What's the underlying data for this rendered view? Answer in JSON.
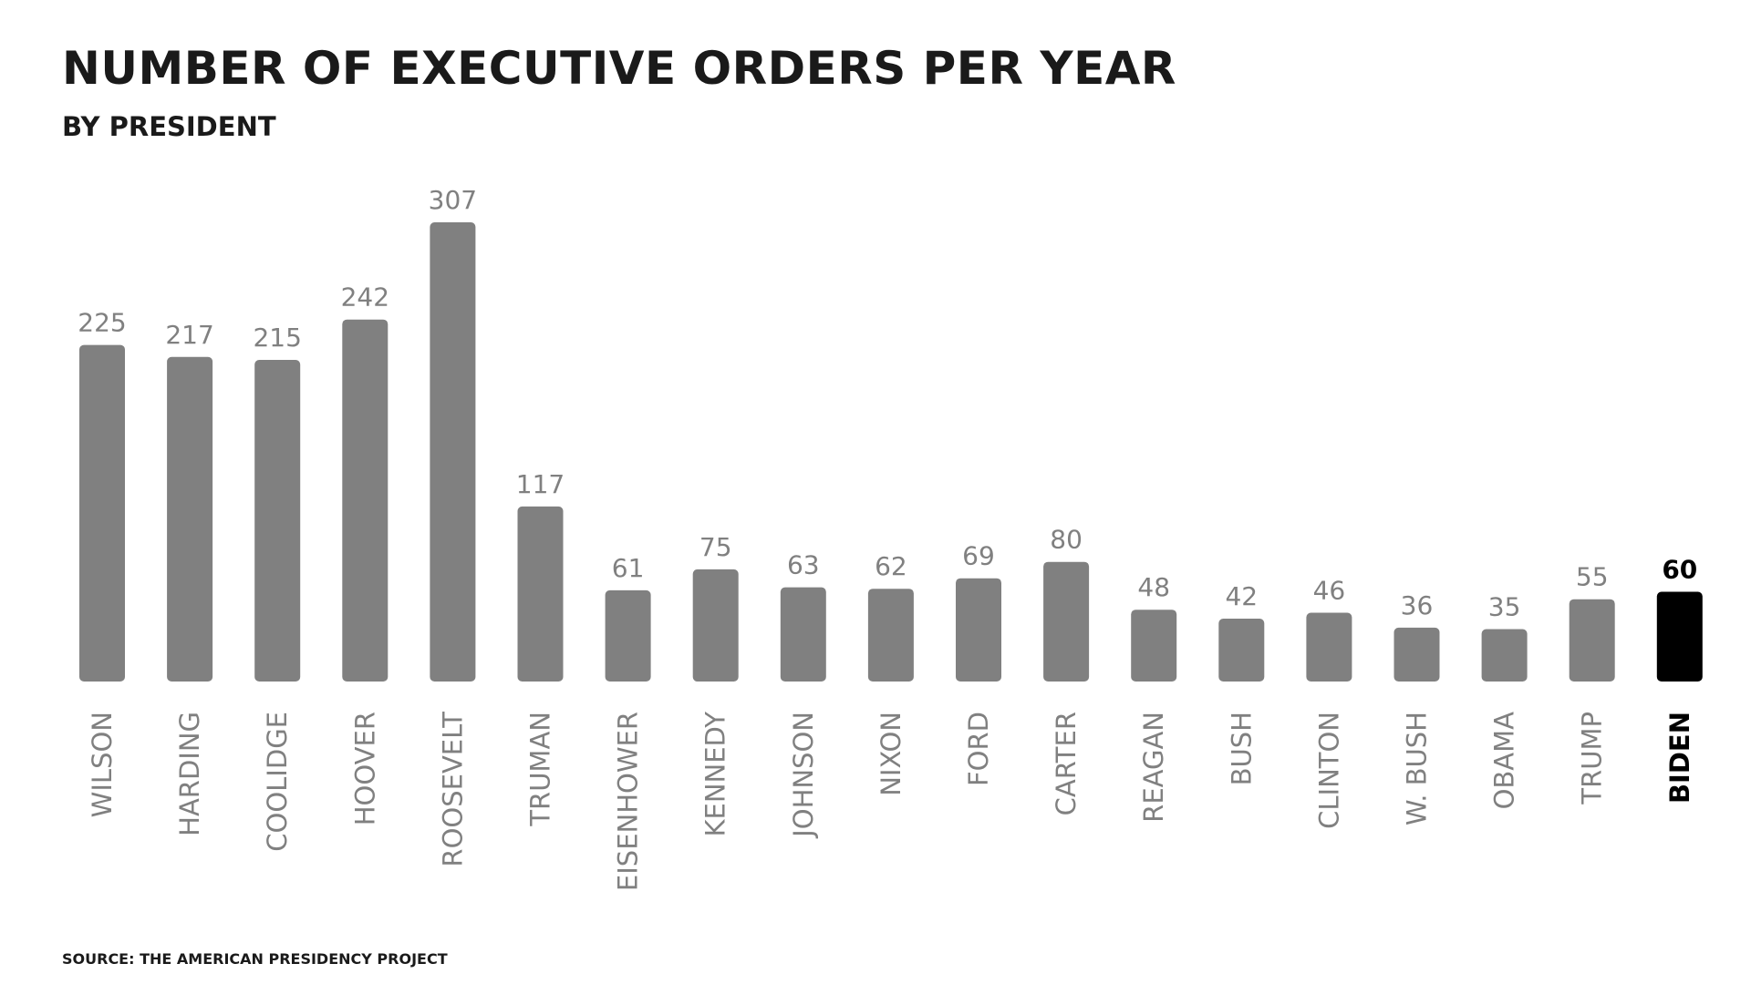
{
  "chart_data": {
    "type": "bar",
    "title": "NUMBER OF EXECUTIVE ORDERS PER YEAR",
    "subtitle": "BY PRESIDENT",
    "source": "SOURCE: THE AMERICAN PRESIDENCY PROJECT",
    "categories": [
      "WILSON",
      "HARDING",
      "COOLIDGE",
      "HOOVER",
      "ROOSEVELT",
      "TRUMAN",
      "EISENHOWER",
      "KENNEDY",
      "JOHNSON",
      "NIXON",
      "FORD",
      "CARTER",
      "REAGAN",
      "BUSH",
      "CLINTON",
      "W. BUSH",
      "OBAMA",
      "TRUMP",
      "BIDEN"
    ],
    "values": [
      225,
      217,
      215,
      242,
      307,
      117,
      61,
      75,
      63,
      62,
      69,
      80,
      48,
      42,
      46,
      36,
      35,
      55,
      60
    ],
    "highlight": "BIDEN",
    "colors": {
      "bar": "#808080",
      "highlight": "#000000",
      "label": "#808080",
      "highlight_label": "#000000"
    },
    "ylim": [
      0,
      307
    ],
    "grid": false,
    "legend": "none"
  }
}
